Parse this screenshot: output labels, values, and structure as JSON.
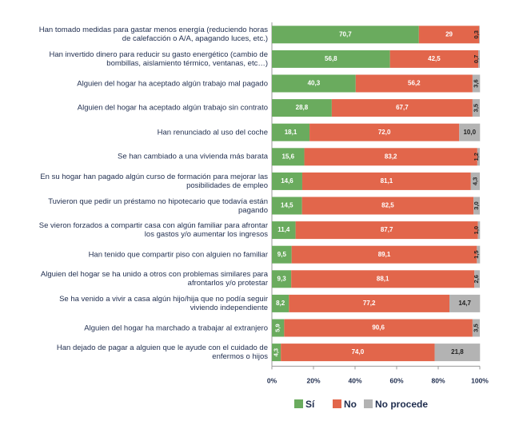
{
  "chart_data": {
    "type": "stacked-bar-horizontal",
    "categories": [
      "Han tomado medidas para gastar menos energía (reduciendo horas\nde calefacción o A/A, apagando luces, etc.)",
      "Han invertido dinero para reducir su gasto energético (cambio de\nbombillas, aislamiento térmico, ventanas, etc…)",
      "Alguien del hogar ha aceptado algún trabajo mal pagado",
      "Alguien del hogar ha aceptado algún trabajo sin contrato",
      "Han renunciado al uso del coche",
      "Se han cambiado a una vivienda más barata",
      "En su hogar han pagado algún curso de formación para mejorar las\nposibilidades de empleo",
      "Tuvieron que pedir un préstamo no hipotecario que todavía están\npagando",
      "Se vieron forzados a compartir casa con algún familiar para afrontar\nlos gastos y/o aumentar los ingresos",
      "Han tenido que compartir piso con alguien no familiar",
      "Alguien del hogar se ha unido a otros con problemas similares para\nafrontarlos y/o protestar",
      "Se ha venido a vivir a casa algún hijo/hija que no podía seguir\nviviendo independiente",
      "Alguien del hogar ha marchado a trabajar al extranjero",
      "Han dejado de pagar a alguien que le ayude con el cuidado de\nenfermos o hijos"
    ],
    "series": [
      {
        "name": "Sí",
        "color": "#6aab5e",
        "values": [
          70.7,
          56.8,
          40.3,
          28.8,
          18.1,
          15.6,
          14.6,
          14.5,
          11.4,
          9.5,
          9.3,
          8.2,
          5.9,
          4.3
        ],
        "value_labels": [
          "70,7",
          "56,8",
          "40,3",
          "28,8",
          "18,1",
          "15,6",
          "14,6",
          "14,5",
          "11,4",
          "9,5",
          "9,3",
          "8,2",
          "5,9",
          "4,3"
        ]
      },
      {
        "name": "No",
        "color": "#e2664b",
        "values": [
          29,
          42.5,
          56.2,
          67.7,
          72.0,
          83.2,
          81.1,
          82.5,
          87.7,
          89.1,
          88.1,
          77.2,
          90.6,
          74.0
        ],
        "value_labels": [
          "29",
          "42,5",
          "56,2",
          "67,7",
          "72,0",
          "83,2",
          "81,1",
          "82,5",
          "87,7",
          "89,1",
          "88,1",
          "77,2",
          "90,6",
          "74,0"
        ]
      },
      {
        "name": "No procede",
        "color": "#b3b3b3",
        "values": [
          0.3,
          0.7,
          3.6,
          3.5,
          10.0,
          1.2,
          4.3,
          3.0,
          1.0,
          1.5,
          2.6,
          14.7,
          3.5,
          21.8
        ],
        "value_labels": [
          "0,3",
          "0,7",
          "3,6",
          "3,5",
          "10,0",
          "1,2",
          "4,3",
          "3,0",
          "1,0",
          "1,5",
          "2,6",
          "14,7",
          "3,5",
          "21,8"
        ]
      }
    ],
    "xlim": [
      0,
      100
    ],
    "xticks": [
      {
        "value": 0,
        "label": "0%"
      },
      {
        "value": 20,
        "label": "20%"
      },
      {
        "value": 40,
        "label": "40%"
      },
      {
        "value": 60,
        "label": "60%"
      },
      {
        "value": 80,
        "label": "80%"
      },
      {
        "value": 100,
        "label": "100%"
      }
    ],
    "legend": "bottom"
  }
}
